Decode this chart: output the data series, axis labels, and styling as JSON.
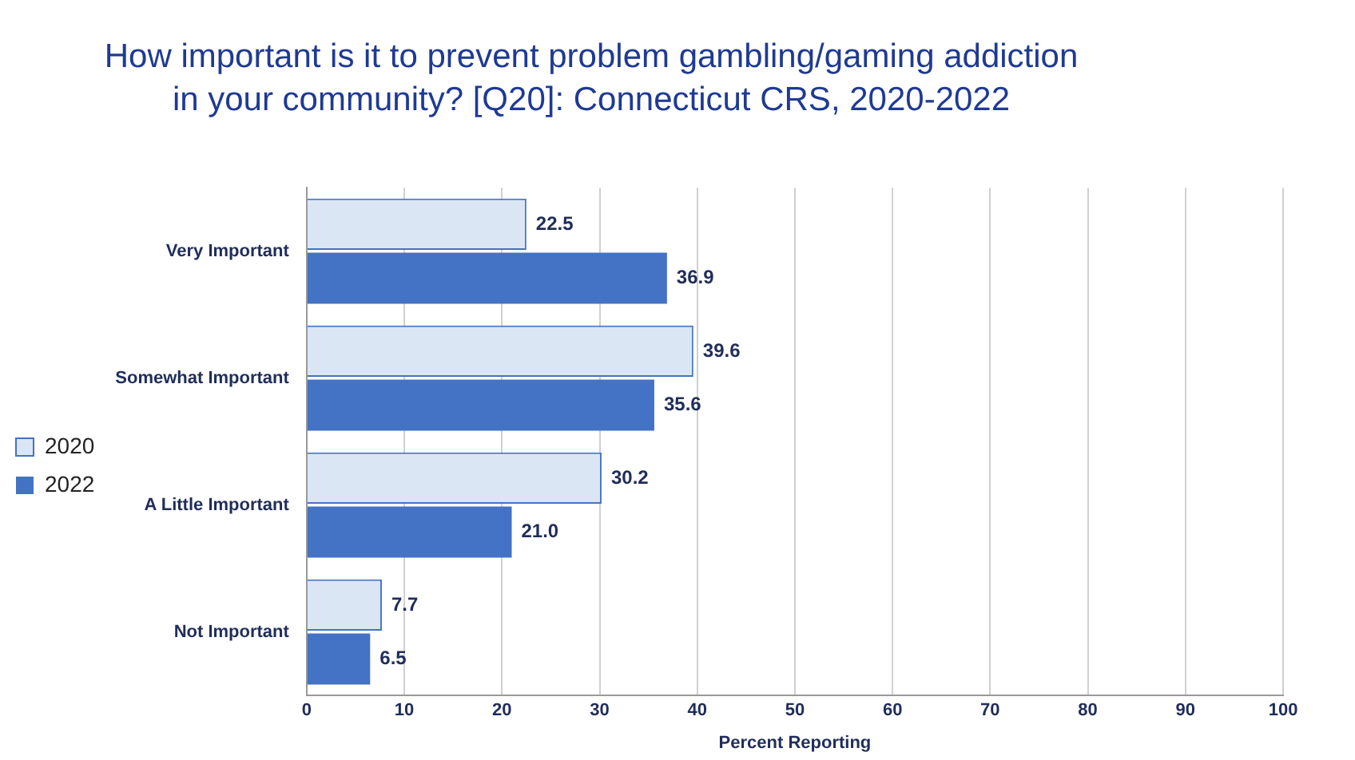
{
  "chart_data": {
    "type": "bar",
    "orientation": "horizontal",
    "title": "How important is it to prevent problem gambling/gaming addiction in your community? [Q20]: Connecticut CRS, 2020-2022",
    "xlabel": "Percent Reporting",
    "categories": [
      "Very Important",
      "Somewhat Important",
      "A Little Important",
      "Not Important"
    ],
    "series": [
      {
        "name": "2020",
        "color": "#dbe6f5",
        "values": [
          22.5,
          39.6,
          30.2,
          7.7
        ],
        "value_labels": [
          "22.5",
          "39.6",
          "30.2",
          "7.7"
        ]
      },
      {
        "name": "2022",
        "color": "#4472c4",
        "values": [
          36.9,
          35.6,
          21.0,
          6.5
        ],
        "value_labels": [
          "36.9",
          "35.6",
          "21.0",
          "6.5"
        ]
      }
    ],
    "xlim": [
      0,
      100
    ],
    "xticks": [
      0,
      10,
      20,
      30,
      40,
      50,
      60,
      70,
      80,
      90,
      100
    ],
    "grid": "x",
    "legend": "left"
  }
}
